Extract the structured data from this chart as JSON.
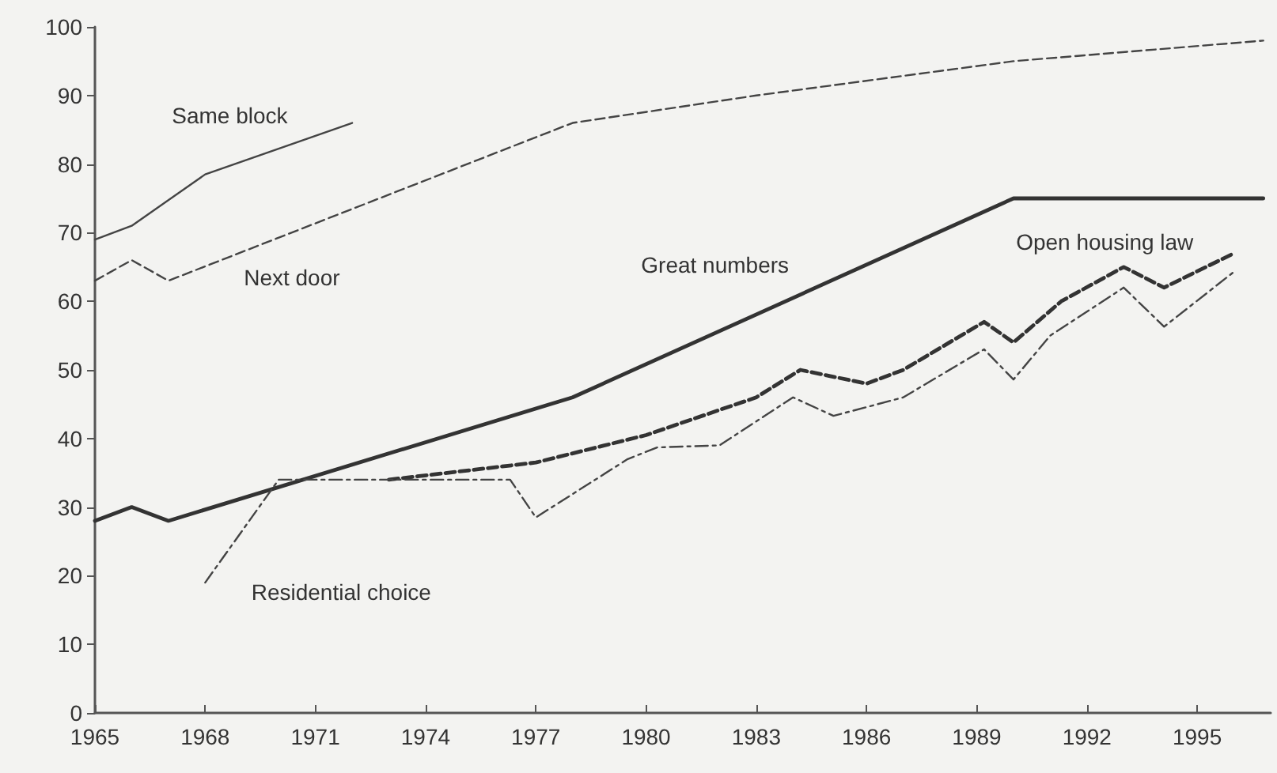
{
  "chart_data": {
    "type": "line",
    "xlim": [
      1965,
      1997
    ],
    "xticks": [
      1965,
      1968,
      1971,
      1974,
      1977,
      1980,
      1983,
      1986,
      1989,
      1992,
      1995
    ],
    "ylim": [
      0,
      100
    ],
    "yticks": [
      0,
      10,
      20,
      30,
      40,
      50,
      60,
      70,
      80,
      90,
      100
    ],
    "grid": false,
    "legend": false,
    "marker": "none",
    "series": [
      {
        "name": "Same block",
        "color": "#444444",
        "line_style": "solid",
        "x": [
          1965,
          1966,
          1968,
          1972
        ],
        "values": [
          69,
          71,
          78.5,
          86
        ]
      },
      {
        "name": "Next door",
        "color": "#444444",
        "line_style": "dashed",
        "x": [
          1965,
          1966,
          1967,
          1978,
          1983,
          1990,
          1996.8
        ],
        "values": [
          63,
          66,
          63,
          86,
          90,
          95,
          98
        ]
      },
      {
        "name": "Great numbers",
        "color": "#333333",
        "line_style": "solid",
        "x": [
          1965,
          1966,
          1967,
          1978,
          1990,
          1996.8
        ],
        "values": [
          28,
          30,
          28,
          46,
          75,
          75
        ]
      },
      {
        "name": "Open housing law",
        "color": "#333333",
        "line_style": "dashed",
        "x": [
          1973,
          1977,
          1980,
          1983,
          1984.2,
          1986,
          1987,
          1989.2,
          1990,
          1991.3,
          1993,
          1994.1,
          1996
        ],
        "values": [
          34,
          36.5,
          40.5,
          46,
          50,
          48,
          50,
          57,
          54,
          60,
          65,
          62,
          67
        ]
      },
      {
        "name": "Residential choice",
        "color": "#444444",
        "line_style": "dotted",
        "x": [
          1968,
          1970,
          1976.3,
          1977,
          1979.5,
          1980.3,
          1982,
          1984,
          1985.1,
          1987,
          1989.2,
          1990,
          1991,
          1993,
          1994.1,
          1996
        ],
        "values": [
          19,
          34,
          34,
          28.5,
          37,
          38.7,
          39,
          46,
          43.3,
          46,
          53,
          48.6,
          55,
          62,
          56.3,
          64.3
        ]
      }
    ]
  }
}
